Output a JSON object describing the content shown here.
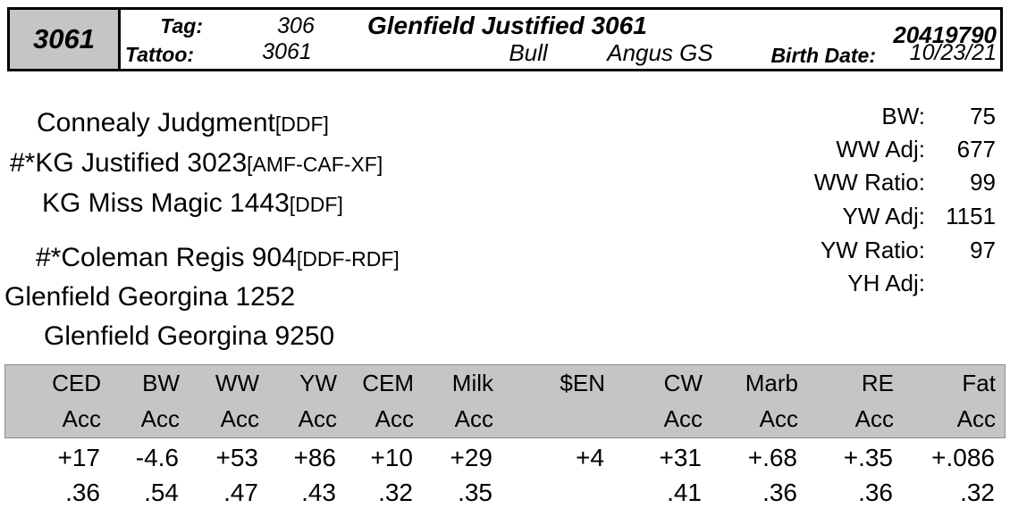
{
  "header": {
    "lot": "3061",
    "tag_label": "Tag:",
    "tag_value": "306",
    "tattoo_label": "Tattoo:",
    "tattoo_value": "3061",
    "name": "Glenfield Justified 3061",
    "sex": "Bull",
    "breed": "Angus GS",
    "reg_number": "20419790",
    "birth_date_label": "Birth Date:",
    "birth_date": "10/23/21"
  },
  "pedigree": {
    "lines": [
      {
        "name": "Connealy Judgment",
        "tags": "[DDF]"
      },
      {
        "name": "#*KG Justified 3023",
        "tags": "[AMF-CAF-XF]"
      },
      {
        "name": "KG Miss Magic 1443",
        "tags": "[DDF]"
      },
      {
        "name": "#*Coleman Regis 904",
        "tags": "[DDF-RDF]"
      },
      {
        "name": "Glenfield Georgina 1252",
        "tags": ""
      },
      {
        "name": "Glenfield Georgina 9250",
        "tags": ""
      }
    ]
  },
  "performance": {
    "rows": [
      {
        "label": "BW:",
        "value": "75"
      },
      {
        "label": "WW Adj:",
        "value": "677"
      },
      {
        "label": "WW Ratio:",
        "value": "99"
      },
      {
        "label": "YW Adj:",
        "value": "1151"
      },
      {
        "label": "YW Ratio:",
        "value": "97"
      },
      {
        "label": "YH Adj:",
        "value": ""
      }
    ]
  },
  "epd_table": {
    "columns": [
      "CED",
      "BW",
      "WW",
      "YW",
      "CEM",
      "Milk",
      "$EN",
      "CW",
      "Marb",
      "RE",
      "Fat"
    ],
    "acc_header": [
      "Acc",
      "Acc",
      "Acc",
      "Acc",
      "Acc",
      "Acc",
      "",
      "Acc",
      "Acc",
      "Acc",
      "Acc"
    ],
    "values": [
      "+17",
      "-4.6",
      "+53",
      "+86",
      "+10",
      "+29",
      "+4",
      "+31",
      "+.68",
      "+.35",
      "+.086"
    ],
    "accuracies": [
      ".36",
      ".54",
      ".47",
      ".43",
      ".32",
      ".35",
      "",
      ".41",
      ".36",
      ".36",
      ".32"
    ]
  },
  "colors": {
    "lot_box_fill": "#c5c5c5",
    "table_header_fill": "#c5c5c5",
    "border": "#000000"
  }
}
